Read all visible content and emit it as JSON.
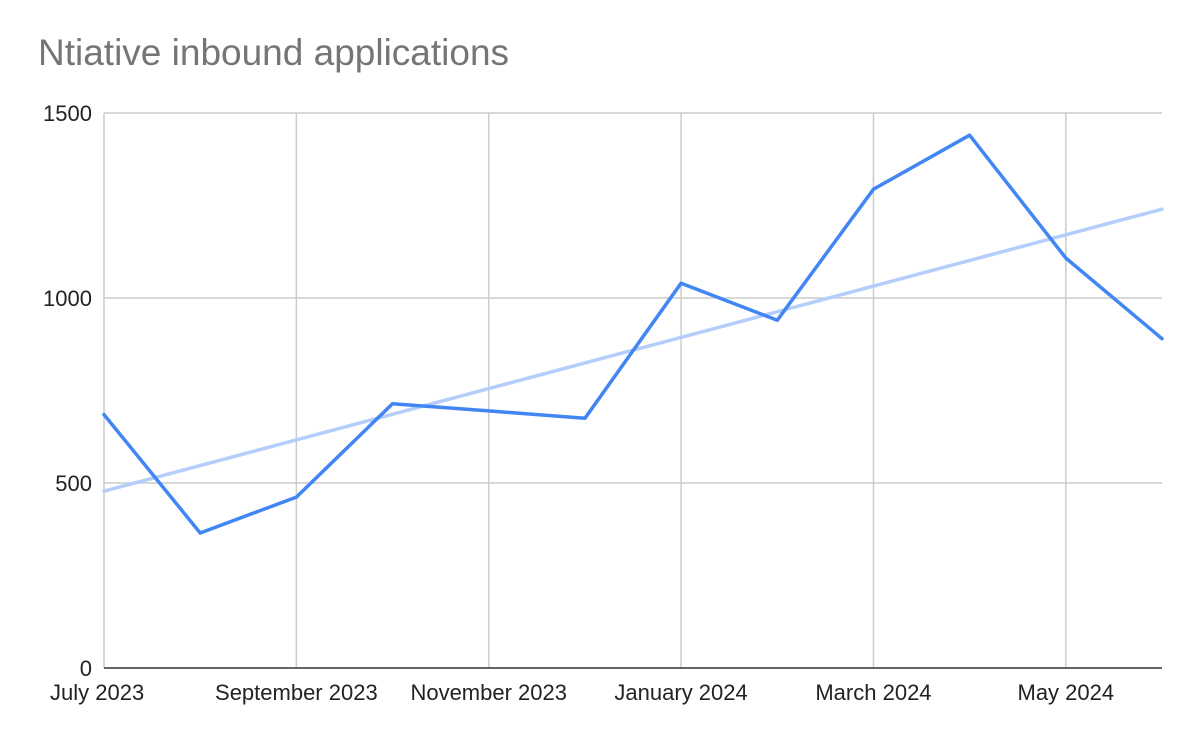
{
  "chart_data": {
    "type": "line",
    "title": "Ntiative inbound applications",
    "xlabel": "",
    "ylabel": "",
    "x": [
      "2023-07",
      "2023-08",
      "2023-09",
      "2023-10",
      "2023-11",
      "2023-12",
      "2024-01",
      "2024-02",
      "2024-03",
      "2024-04",
      "2024-05",
      "2024-06"
    ],
    "series": [
      {
        "values": [
          685,
          365,
          462,
          714,
          695,
          675,
          1040,
          940,
          1294,
          1440,
          1108,
          890
        ],
        "color": "#4285f4"
      }
    ],
    "trendline": {
      "type": "linear",
      "start_value": 478,
      "end_value": 1240,
      "color": "#b3cefb"
    },
    "x_tick_labels": [
      "July 2023",
      "September 2023",
      "November 2023",
      "January 2024",
      "March 2024",
      "May 2024"
    ],
    "x_tick_indices": [
      0,
      2,
      4,
      6,
      8,
      10
    ],
    "y_ticks": [
      0,
      500,
      1000,
      1500
    ],
    "ylim": [
      0,
      1500
    ],
    "grid": true,
    "legend": "none"
  }
}
